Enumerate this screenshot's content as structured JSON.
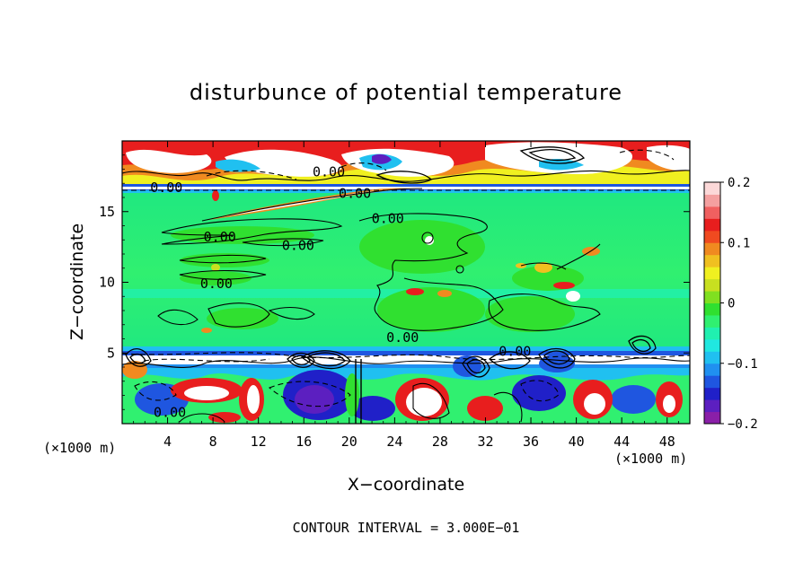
{
  "chart_data": {
    "type": "heatmap",
    "title": "disturbunce of potential temperature",
    "xlabel": "X−coordinate",
    "ylabel": "Z−coordinate",
    "x_unit": "(×1000 m)",
    "y_unit": "(×1000 m)",
    "footer": "CONTOUR INTERVAL = 3.000E−01",
    "xlim": [
      0,
      50
    ],
    "ylim": [
      0,
      20
    ],
    "x_ticks": [
      4,
      8,
      12,
      16,
      20,
      24,
      28,
      32,
      36,
      40,
      44,
      48
    ],
    "y_ticks": [
      5,
      10,
      15
    ],
    "colorbar": {
      "range": [
        -0.2,
        0.2
      ],
      "tick_values": [
        -0.2,
        -0.1,
        0,
        0.1,
        0.2
      ],
      "tick_labels": [
        "−0.2",
        "−0.1",
        "0",
        "0.1",
        "0.2"
      ],
      "colors": [
        "#8a1fa8",
        "#5c1fc0",
        "#2020c8",
        "#1f56e0",
        "#2090f0",
        "#20c0f0",
        "#20e8e0",
        "#20f0b0",
        "#30f070",
        "#30e030",
        "#80e020",
        "#c8e020",
        "#f0f020",
        "#f0c020",
        "#f08a20",
        "#f04a20",
        "#e81e1e",
        "#f06060",
        "#f4a0a0",
        "#fcd8d8"
      ]
    },
    "contour_labels": [
      {
        "text": "0.00",
        "x": 3.9,
        "z": 16.7
      },
      {
        "text": "0.00",
        "x": 18.2,
        "z": 17.8
      },
      {
        "text": "0.00",
        "x": 20.5,
        "z": 16.3
      },
      {
        "text": "0.00",
        "x": 8.6,
        "z": 13.2
      },
      {
        "text": "0.00",
        "x": 15.5,
        "z": 12.6
      },
      {
        "text": "0.00",
        "x": 8.3,
        "z": 9.9
      },
      {
        "text": "0.00",
        "x": 23.4,
        "z": 14.5
      },
      {
        "text": "0.00",
        "x": 24.7,
        "z": 6.1
      },
      {
        "text": "0.00",
        "x": 34.6,
        "z": 5.1
      },
      {
        "text": "0.00",
        "x": 4.2,
        "z": 0.8
      }
    ]
  }
}
